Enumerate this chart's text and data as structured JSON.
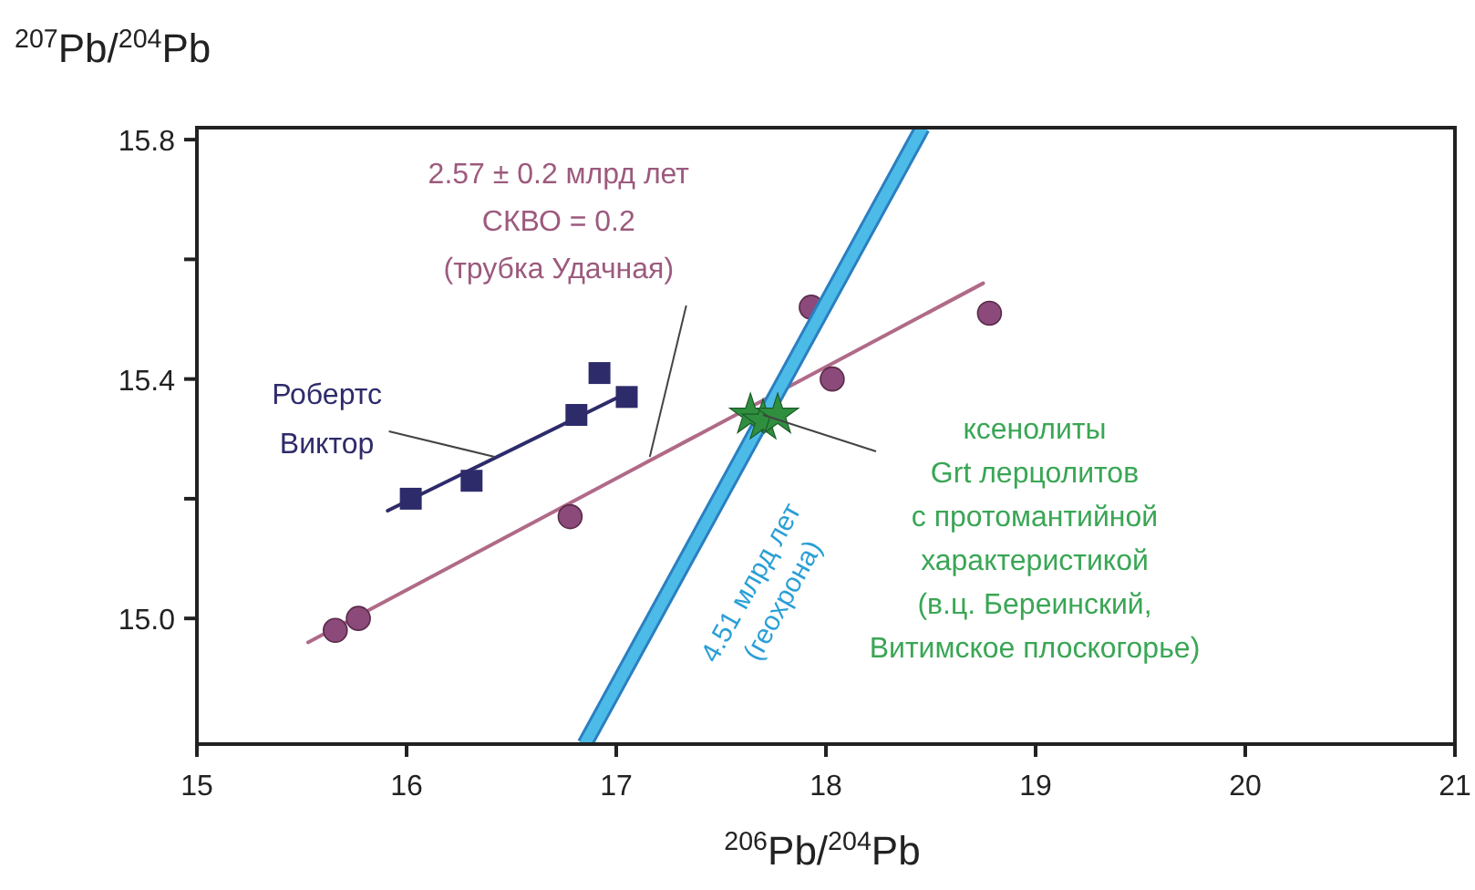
{
  "chart_data": {
    "type": "scatter",
    "xlabel": "$^{206}$Pb/$^{204}$Pb",
    "ylabel": "$^{207}$Pb/$^{204}$Pb",
    "xlim": [
      15,
      21
    ],
    "ylim": [
      14.79,
      15.82
    ],
    "xticks": [
      15,
      16,
      17,
      18,
      19,
      20,
      21
    ],
    "yticks": [
      {
        "value": 15,
        "label": "15.0"
      },
      {
        "value": 15.2,
        "label": null
      },
      {
        "value": 15.4,
        "label": "15.4"
      },
      {
        "value": 15.6,
        "label": null
      },
      {
        "value": 15.8,
        "label": "15.8"
      }
    ],
    "grid": false,
    "series": [
      {
        "type": "line",
        "color": "#b06a88",
        "marker": "none",
        "x": [
          15.53,
          18.75
        ],
        "values": [
          14.96,
          15.56
        ]
      },
      {
        "color": "#8b4a7a",
        "marker": "circle",
        "x": [
          15.66,
          15.77,
          16.78,
          17.93,
          18.03,
          18.78
        ],
        "values": [
          14.98,
          15.0,
          15.17,
          15.52,
          15.4,
          15.51
        ]
      },
      {
        "type": "line",
        "color": "#2e2b6b",
        "marker": "none",
        "x": [
          15.91,
          17.07
        ],
        "values": [
          15.18,
          15.38
        ]
      },
      {
        "color": "#2e2b6b",
        "marker": "square",
        "x": [
          16.02,
          16.31,
          16.81,
          16.92,
          17.05
        ],
        "values": [
          15.2,
          15.23,
          15.34,
          15.41,
          15.37
        ]
      },
      {
        "type": "line",
        "color": "#4dbbe8",
        "marker": "none",
        "x": [
          16.85,
          18.46
        ],
        "values": [
          14.79,
          15.82
        ]
      },
      {
        "color": "#2f8f3f",
        "marker": "star",
        "x": [
          17.64,
          17.7,
          17.77
        ],
        "values": [
          15.34,
          15.33,
          15.34
        ]
      }
    ],
    "annotations": [
      {
        "text": "2.57 ± 0.2 млрд лет\nСКВО = 0.2\n(трубка Удачная)",
        "x": 17.16,
        "y": 15.27
      },
      {
        "text": "Робертс\nВиктор",
        "x": 16.42,
        "y": 15.27
      },
      {
        "text": "4.51 млрд лет\n(геохрона)",
        "x": 17.3,
        "y": 15.1
      },
      {
        "text": "ксенолиты\nGrt лерцолитов\nс протомантийной\nхарактеристикой\n(в.ц. Береинский,\nВитимское плоскогорье)",
        "x": 17.7,
        "y": 15.34
      }
    ]
  }
}
